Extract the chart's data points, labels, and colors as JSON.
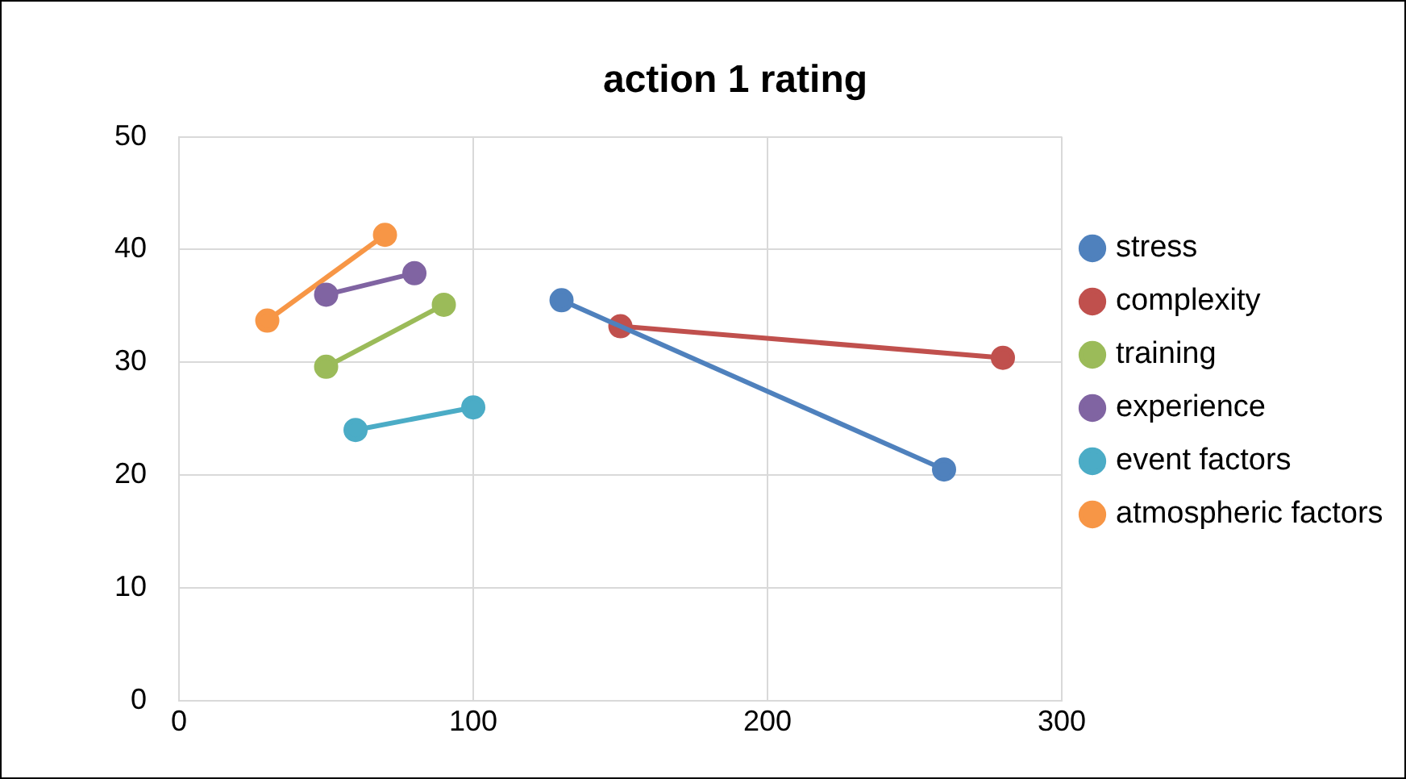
{
  "chart_data": {
    "type": "line",
    "title": "action 1 rating",
    "xlim": [
      0,
      300
    ],
    "xticks": [
      0,
      100,
      200,
      300
    ],
    "ylim": [
      0,
      50
    ],
    "yticks": [
      0,
      10,
      20,
      30,
      40,
      50
    ],
    "grid": true,
    "legend": "right",
    "marker": "circle",
    "line_style": "solid",
    "series": [
      {
        "name": "stress",
        "color": "#4f81bd",
        "x": [
          130,
          260
        ],
        "values": [
          35.5,
          20.5
        ]
      },
      {
        "name": "complexity",
        "color": "#c0504d",
        "x": [
          150,
          280
        ],
        "values": [
          33.2,
          30.4
        ]
      },
      {
        "name": "training",
        "color": "#9bbb59",
        "x": [
          50,
          90
        ],
        "values": [
          29.6,
          35.1
        ]
      },
      {
        "name": "experience",
        "color": "#8064a2",
        "x": [
          50,
          80
        ],
        "values": [
          36,
          37.9
        ]
      },
      {
        "name": "event factors",
        "color": "#4bacc6",
        "x": [
          60,
          100
        ],
        "values": [
          24,
          26
        ]
      },
      {
        "name": "atmospheric factors",
        "color": "#f79646",
        "x": [
          30,
          70
        ],
        "values": [
          33.7,
          41.3
        ]
      }
    ]
  }
}
